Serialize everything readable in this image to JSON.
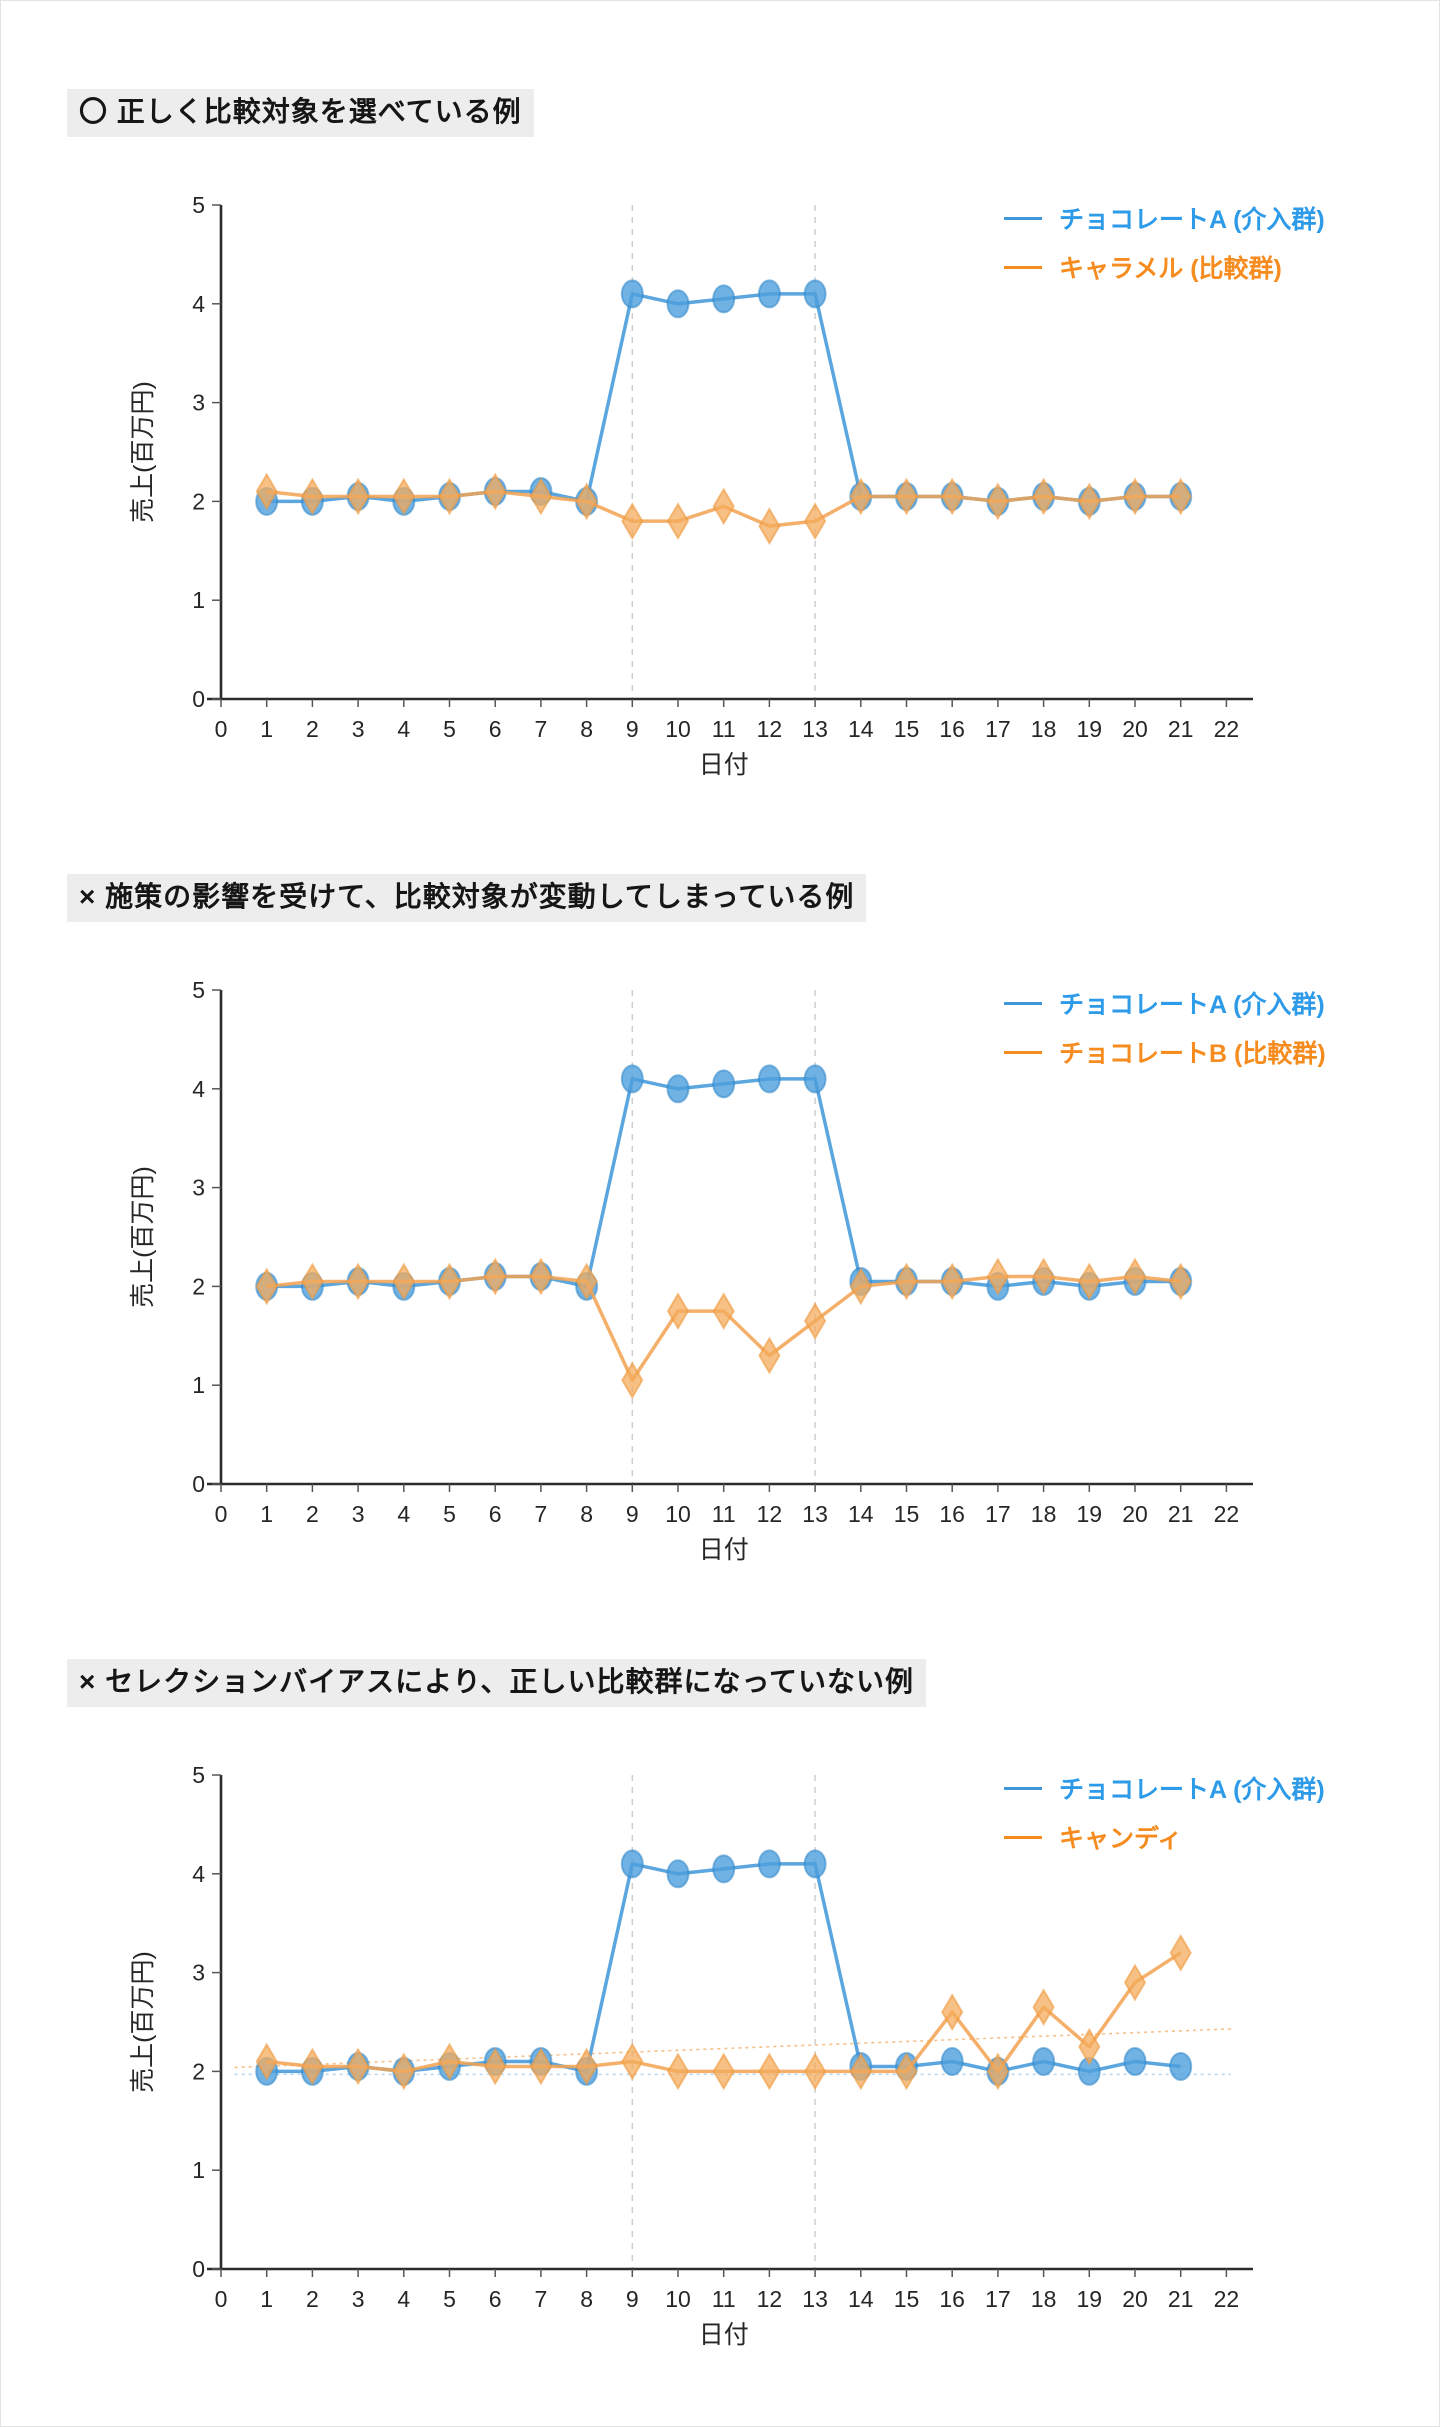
{
  "page": {
    "background": "#ffffff",
    "border": "#e3e3e3"
  },
  "colors": {
    "blue_line": "#3e97d9",
    "blue_fill": "#4d9fdd",
    "blue_stroke": "#2f87c9",
    "blue_text": "#2e9be8",
    "orange_line": "#f2a250",
    "orange_fill": "#f4ab5c",
    "orange_stroke": "#ef9a3e",
    "orange_text": "#f68c1f",
    "axis": "#2b2b2b",
    "tick_label": "#262626",
    "vline": "#cccccc",
    "trend_orange": "#f7c089",
    "trend_blue": "#b5d7f2",
    "title_bg": "#ededed",
    "title_text": "#161616"
  },
  "chart_data": [
    {
      "type": "line",
      "title": "〇 正しく比較対象を選べている例",
      "xlabel": "日付",
      "ylabel": "売上(百万円)",
      "xlim": [
        0,
        22.4
      ],
      "ylim": [
        0,
        5
      ],
      "x_ticks": [
        0,
        1,
        2,
        3,
        4,
        5,
        6,
        7,
        8,
        9,
        10,
        11,
        12,
        13,
        14,
        15,
        16,
        17,
        18,
        19,
        20,
        21,
        22
      ],
      "y_ticks": [
        0,
        1,
        2,
        3,
        4,
        5
      ],
      "vlines": [
        9,
        13
      ],
      "grid": "off",
      "legend_position": "top-right",
      "x": [
        1,
        2,
        3,
        4,
        5,
        6,
        7,
        8,
        9,
        10,
        11,
        12,
        13,
        14,
        15,
        16,
        17,
        18,
        19,
        20,
        21
      ],
      "series": [
        {
          "name": "チョコレートA (介入群)",
          "color": "blue",
          "marker": "circle",
          "values": [
            2.0,
            2.0,
            2.05,
            2.0,
            2.05,
            2.1,
            2.1,
            2.0,
            4.1,
            4.0,
            4.05,
            4.1,
            4.1,
            2.05,
            2.05,
            2.05,
            2.0,
            2.05,
            2.0,
            2.05,
            2.05
          ]
        },
        {
          "name": "キャラメル (比較群)",
          "color": "orange",
          "marker": "diamond",
          "values": [
            2.1,
            2.05,
            2.05,
            2.05,
            2.05,
            2.1,
            2.05,
            2.0,
            1.8,
            1.8,
            1.95,
            1.75,
            1.8,
            2.05,
            2.05,
            2.05,
            2.0,
            2.05,
            2.0,
            2.05,
            2.05
          ]
        }
      ],
      "trend_lines": []
    },
    {
      "type": "line",
      "title": "× 施策の影響を受けて、比較対象が変動してしまっている例",
      "xlabel": "日付",
      "ylabel": "売上(百万円)",
      "xlim": [
        0,
        22.4
      ],
      "ylim": [
        0,
        5
      ],
      "x_ticks": [
        0,
        1,
        2,
        3,
        4,
        5,
        6,
        7,
        8,
        9,
        10,
        11,
        12,
        13,
        14,
        15,
        16,
        17,
        18,
        19,
        20,
        21,
        22
      ],
      "y_ticks": [
        0,
        1,
        2,
        3,
        4,
        5
      ],
      "vlines": [
        9,
        13
      ],
      "grid": "off",
      "legend_position": "top-right",
      "x": [
        1,
        2,
        3,
        4,
        5,
        6,
        7,
        8,
        9,
        10,
        11,
        12,
        13,
        14,
        15,
        16,
        17,
        18,
        19,
        20,
        21
      ],
      "series": [
        {
          "name": "チョコレートA (介入群)",
          "color": "blue",
          "marker": "circle",
          "values": [
            2.0,
            2.0,
            2.05,
            2.0,
            2.05,
            2.1,
            2.1,
            2.0,
            4.1,
            4.0,
            4.05,
            4.1,
            4.1,
            2.05,
            2.05,
            2.05,
            2.0,
            2.05,
            2.0,
            2.05,
            2.05
          ]
        },
        {
          "name": "チョコレートB (比較群)",
          "color": "orange",
          "marker": "diamond",
          "values": [
            2.0,
            2.05,
            2.05,
            2.05,
            2.05,
            2.1,
            2.1,
            2.05,
            1.05,
            1.75,
            1.75,
            1.3,
            1.65,
            2.0,
            2.05,
            2.05,
            2.1,
            2.1,
            2.05,
            2.1,
            2.05
          ]
        }
      ],
      "trend_lines": []
    },
    {
      "type": "line",
      "title": "× セレクションバイアスにより、正しい比較群になっていない例",
      "xlabel": "日付",
      "ylabel": "売上(百万円)",
      "xlim": [
        0,
        22.4
      ],
      "ylim": [
        0,
        5
      ],
      "x_ticks": [
        0,
        1,
        2,
        3,
        4,
        5,
        6,
        7,
        8,
        9,
        10,
        11,
        12,
        13,
        14,
        15,
        16,
        17,
        18,
        19,
        20,
        21,
        22
      ],
      "y_ticks": [
        0,
        1,
        2,
        3,
        4,
        5
      ],
      "vlines": [
        9,
        13
      ],
      "grid": "off",
      "legend_position": "top-right",
      "x": [
        1,
        2,
        3,
        4,
        5,
        6,
        7,
        8,
        9,
        10,
        11,
        12,
        13,
        14,
        15,
        16,
        17,
        18,
        19,
        20,
        21
      ],
      "series": [
        {
          "name": "チョコレートA (介入群)",
          "color": "blue",
          "marker": "circle",
          "values": [
            2.0,
            2.0,
            2.05,
            2.0,
            2.05,
            2.1,
            2.1,
            2.0,
            4.1,
            4.0,
            4.05,
            4.1,
            4.1,
            2.05,
            2.05,
            2.1,
            2.0,
            2.1,
            2.0,
            2.1,
            2.05
          ]
        },
        {
          "name": "キャンディ",
          "color": "orange",
          "marker": "diamond",
          "values": [
            2.1,
            2.05,
            2.05,
            2.0,
            2.1,
            2.05,
            2.05,
            2.05,
            2.1,
            2.0,
            2.0,
            2.0,
            2.0,
            2.0,
            2.0,
            2.6,
            2.0,
            2.65,
            2.25,
            2.9,
            3.2
          ]
        }
      ],
      "trend_lines": [
        {
          "color": "trend_orange",
          "x1": 0.3,
          "y1": 2.04,
          "x2": 22.1,
          "y2": 2.43
        },
        {
          "color": "trend_blue",
          "x1": 0.3,
          "y1": 1.97,
          "x2": 22.1,
          "y2": 1.97
        }
      ]
    }
  ]
}
